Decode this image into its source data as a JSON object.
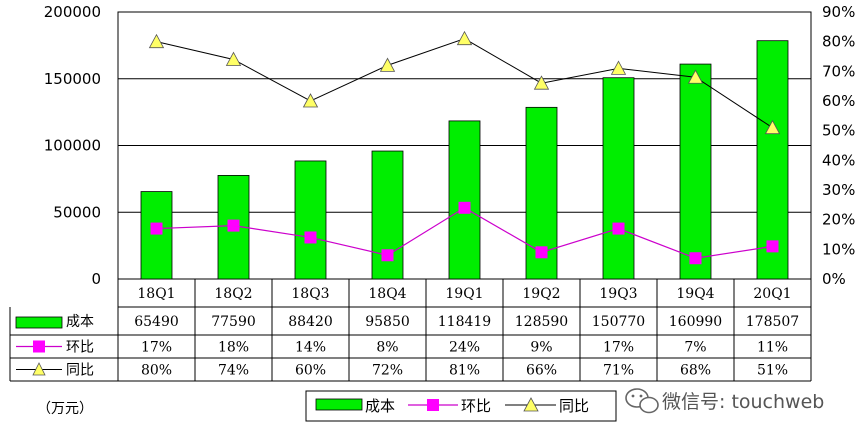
{
  "chart_data": {
    "type": "bar",
    "categories": [
      "18Q1",
      "18Q2",
      "18Q3",
      "18Q4",
      "19Q1",
      "19Q2",
      "19Q3",
      "19Q4",
      "20Q1"
    ],
    "series": [
      {
        "name": "成本",
        "type": "bar",
        "axis": "left",
        "values": [
          65490,
          77590,
          88420,
          95850,
          118419,
          128590,
          150770,
          160990,
          178507
        ],
        "labels": [
          "65490",
          "77590",
          "88420",
          "95850",
          "118419",
          "128590",
          "150770",
          "160990",
          "178507"
        ]
      },
      {
        "name": "环比",
        "type": "line",
        "axis": "right",
        "values": [
          17,
          18,
          14,
          8,
          24,
          9,
          17,
          7,
          11
        ],
        "labels": [
          "17%",
          "18%",
          "14%",
          "8%",
          "24%",
          "9%",
          "17%",
          "7%",
          "11%"
        ]
      },
      {
        "name": "同比",
        "type": "line",
        "axis": "right",
        "values": [
          80,
          74,
          60,
          72,
          81,
          66,
          71,
          68,
          51
        ],
        "labels": [
          "80%",
          "74%",
          "60%",
          "72%",
          "81%",
          "66%",
          "71%",
          "68%",
          "51%"
        ]
      }
    ],
    "ylim_left": [
      0,
      200000
    ],
    "ylim_right": [
      0,
      90
    ],
    "left_ticks": [
      "0",
      "50000",
      "100000",
      "150000",
      "200000"
    ],
    "right_ticks": [
      "0%",
      "10%",
      "20%",
      "30%",
      "40%",
      "50%",
      "60%",
      "70%",
      "80%",
      "90%"
    ],
    "unit_label": "（万元）",
    "legend_position": "bottom",
    "grid": true
  },
  "colors": {
    "bar_fill": "#00ee00",
    "bar_stroke": "#000000",
    "qoq_line": "#cc00cc",
    "qoq_marker": "#ff00ff",
    "yoy_line": "#000000",
    "yoy_marker": "#ffff66"
  },
  "watermark": {
    "icon": "wechat-icon",
    "text": "微信号: touchweb"
  }
}
